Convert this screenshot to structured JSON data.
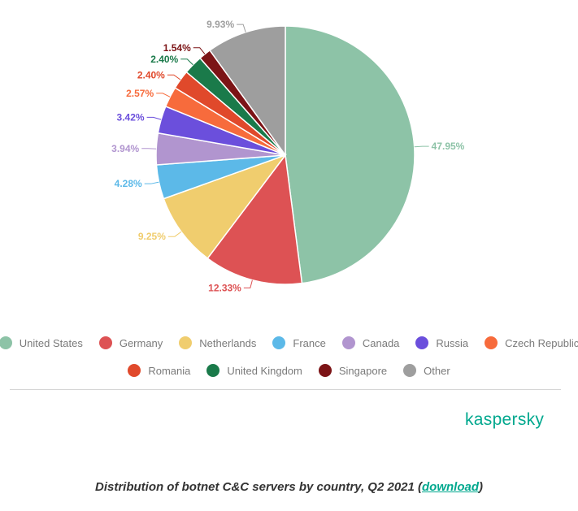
{
  "chart_data": {
    "type": "pie",
    "title": "",
    "series": [
      {
        "label": "United States",
        "value": 47.95,
        "value_label": "47.95%",
        "color": "#8dc3a7"
      },
      {
        "label": "Germany",
        "value": 12.33,
        "value_label": "12.33%",
        "color": "#dd5254"
      },
      {
        "label": "Netherlands",
        "value": 9.25,
        "value_label": "9.25%",
        "color": "#f0cd6e"
      },
      {
        "label": "France",
        "value": 4.28,
        "value_label": "4.28%",
        "color": "#5cb9e8"
      },
      {
        "label": "Canada",
        "value": 3.94,
        "value_label": "3.94%",
        "color": "#b195cf"
      },
      {
        "label": "Russia",
        "value": 3.42,
        "value_label": "3.42%",
        "color": "#6b4fdc"
      },
      {
        "label": "Czech Republic",
        "value": 2.57,
        "value_label": "2.57%",
        "color": "#f76b3c"
      },
      {
        "label": "Romania",
        "value": 2.4,
        "value_label": "2.40%",
        "color": "#e0492b"
      },
      {
        "label": "United Kingdom",
        "value": 2.4,
        "value_label": "2.40%",
        "color": "#1a7a4a"
      },
      {
        "label": "Singapore",
        "value": 1.54,
        "value_label": "1.54%",
        "color": "#7c1416"
      },
      {
        "label": "Other",
        "value": 9.93,
        "value_label": "9.93%",
        "color": "#9e9e9e"
      }
    ],
    "legend_placement": "bottom"
  },
  "brand": "kaspersky",
  "caption": {
    "text": "Distribution of botnet C&C servers by country, Q2 2021 (",
    "link": "download",
    "suffix": ")"
  }
}
